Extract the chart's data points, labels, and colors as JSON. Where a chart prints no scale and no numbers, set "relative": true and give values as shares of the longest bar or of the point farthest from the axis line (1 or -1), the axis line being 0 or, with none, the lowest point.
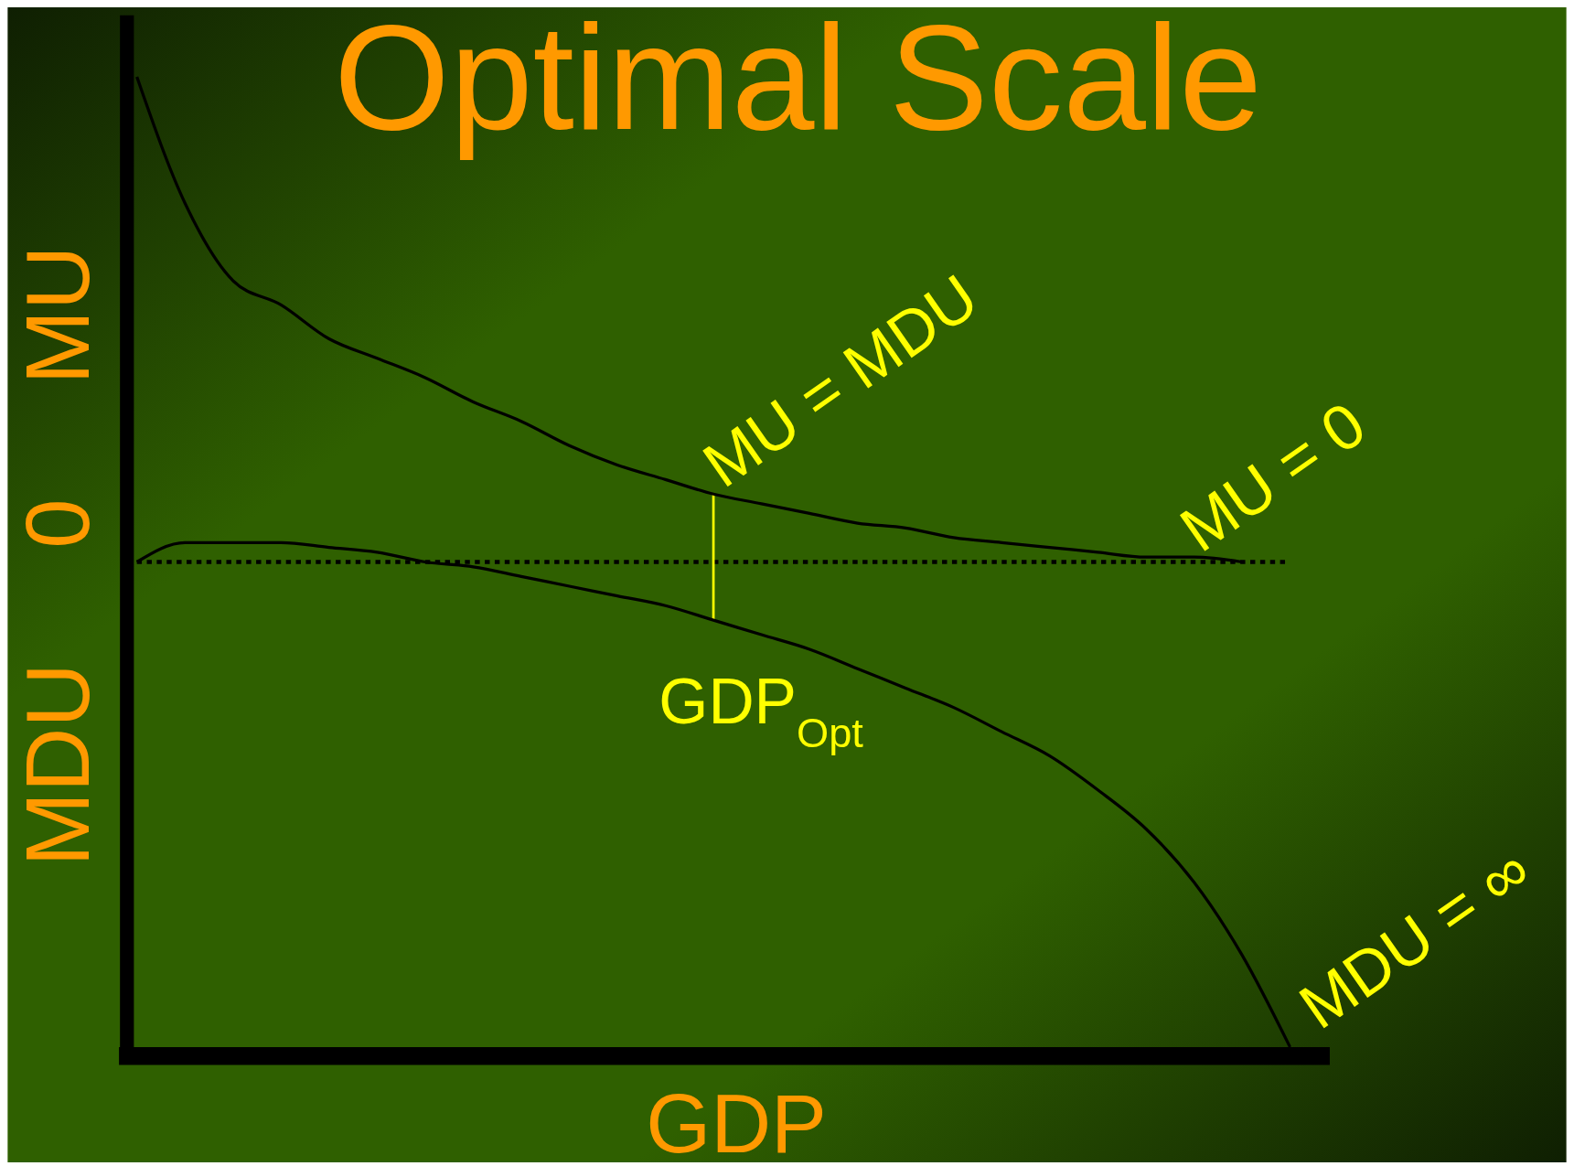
{
  "chart_data": {
    "type": "line",
    "title": "Optimal Scale",
    "xlabel": "GDP",
    "ylabel": "MDU 0 MU",
    "relative": true,
    "categories": [
      null,
      null,
      null,
      null,
      null,
      null,
      null,
      null,
      null,
      null,
      null,
      null,
      null,
      null,
      null,
      null,
      null,
      null,
      null,
      null,
      null,
      null,
      null,
      null,
      null
    ],
    "series": [
      {
        "color": "#000000",
        "values": [
          1.0,
          0.74,
          0.58,
          0.53,
          0.46,
          0.42,
          0.38,
          0.33,
          0.29,
          0.24,
          0.2,
          0.17,
          0.14,
          0.12,
          0.1,
          0.08,
          0.07,
          0.05,
          0.04,
          0.03,
          0.02,
          0.01,
          0.01,
          0,
          null
        ]
      },
      {
        "color": "#000000",
        "values": [
          0,
          0.04,
          0.04,
          0.04,
          0.03,
          0.02,
          0,
          -0.01,
          -0.03,
          -0.05,
          -0.07,
          -0.09,
          -0.12,
          -0.15,
          -0.18,
          -0.22,
          -0.26,
          -0.3,
          -0.35,
          -0.4,
          -0.47,
          -0.55,
          -0.66,
          -0.81,
          -1.0
        ]
      }
    ],
    "ref_lines": [
      {
        "axis": "y",
        "value": 0,
        "color": "#000000",
        "line_style": "dotted"
      }
    ],
    "annotations": [
      "MU = MDU",
      "MU = 0",
      "MDU = ∞",
      "GDP$_{Opt}$"
    ],
    "marker": "none",
    "line_style": "solid"
  }
}
